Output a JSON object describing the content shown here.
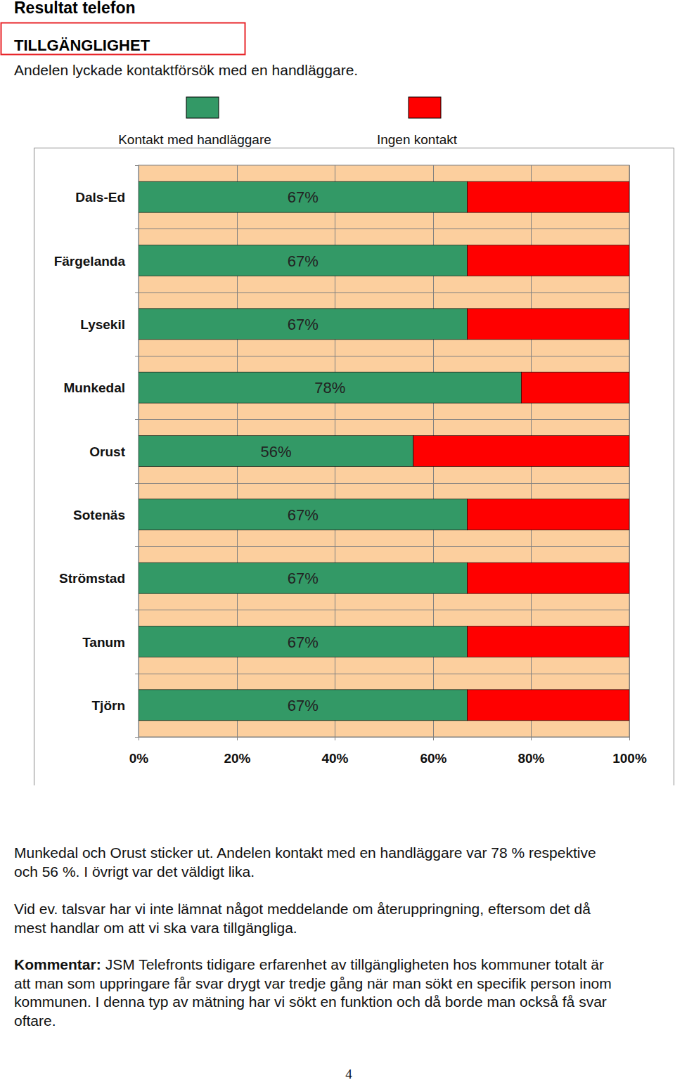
{
  "header": {
    "title": "Resultat telefon",
    "section": "TILLGÄNGLIGHET",
    "subtitle": "Andelen lyckade kontaktförsök med en handläggare."
  },
  "chart_data": {
    "type": "bar",
    "orientation": "horizontal",
    "stacked": true,
    "grid": true,
    "legend": "top",
    "data_labels": true,
    "categories": [
      "Dals-Ed",
      "Färgelanda",
      "Lysekil",
      "Munkedal",
      "Orust",
      "Sotenäs",
      "Strömstad",
      "Tanum",
      "Tjörn"
    ],
    "series": [
      {
        "name": "Kontakt med handläggare",
        "color": "#339966",
        "values": [
          67,
          67,
          67,
          78,
          56,
          67,
          67,
          67,
          67
        ],
        "value_labels": [
          "67%",
          "67%",
          "67%",
          "78%",
          "56%",
          "67%",
          "67%",
          "67%",
          "67%"
        ]
      },
      {
        "name": "Ingen kontakt",
        "color": "#ff0000",
        "values": [
          33,
          33,
          33,
          22,
          44,
          33,
          33,
          33,
          33
        ]
      }
    ],
    "xlim": [
      0,
      100
    ],
    "xticks": [
      {
        "value": 0,
        "label": "0%"
      },
      {
        "value": 20,
        "label": "20%"
      },
      {
        "value": 40,
        "label": "40%"
      },
      {
        "value": 60,
        "label": "60%"
      },
      {
        "value": 80,
        "label": "80%"
      },
      {
        "value": 100,
        "label": "100%"
      }
    ]
  },
  "body": [
    {
      "lines": [
        "Munkedal och Orust sticker ut. Andelen kontakt med en handläggare var 78 % respektive",
        "och 56 %. I övrigt var det väldigt lika."
      ]
    },
    {
      "lines": [
        "Vid ev. talsvar har vi inte lämnat något meddelande om återuppringning, eftersom det då",
        "mest handlar om att vi ska vara tillgängliga."
      ]
    },
    {
      "label": "Kommentar:",
      "lines": [
        "JSM Telefronts tidigare erfarenhet av tillgängligheten hos kommuner totalt är",
        "att man som uppringare får svar drygt var tredje gång när man sökt en specifik person inom",
        "kommunen. I denna typ av mätning har vi sökt en funktion och då borde man också få svar",
        "oftare."
      ]
    }
  ],
  "page_number": "4"
}
